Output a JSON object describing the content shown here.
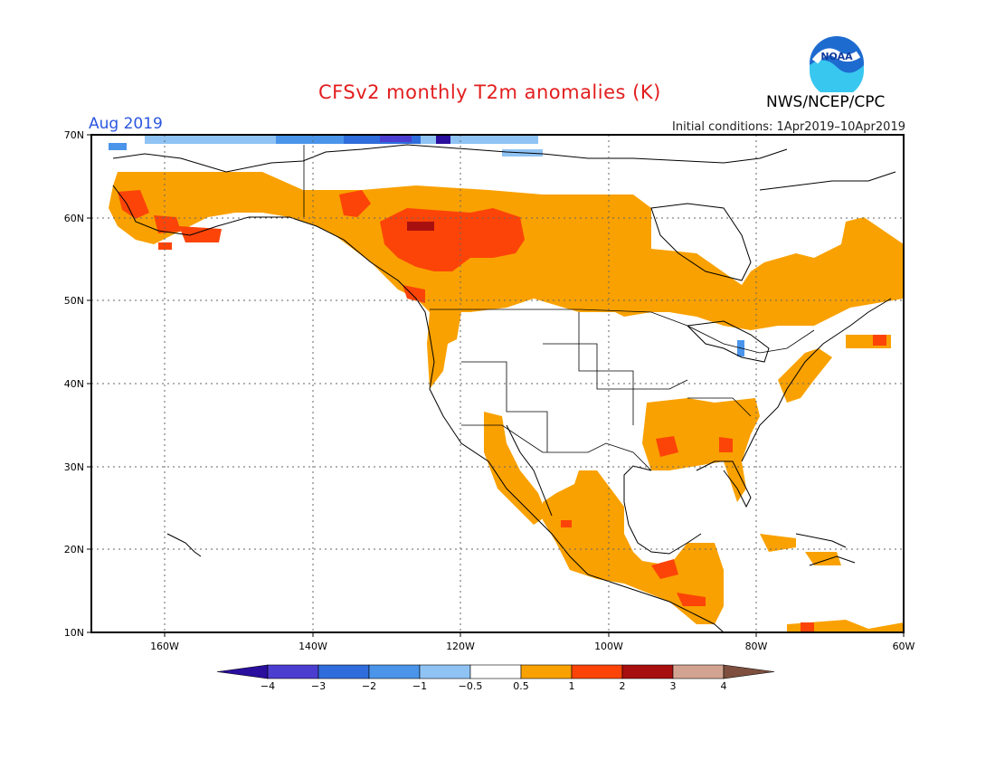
{
  "header": {
    "title": "CFSv2 monthly T2m anomalies (K)",
    "month": "Aug 2019",
    "initial_conditions": "Initial conditions: 1Apr2019–10Apr2019",
    "agency": "NWS/NCEP/CPC",
    "logo_text": "NOAA"
  },
  "map": {
    "lon_labels": [
      "160W",
      "140W",
      "120W",
      "100W",
      "80W",
      "60W"
    ],
    "lat_labels": [
      "70N",
      "60N",
      "50N",
      "40N",
      "30N",
      "20N",
      "10N"
    ],
    "lon_range": [
      -170,
      -60
    ],
    "lat_range": [
      10,
      70
    ]
  },
  "legend": {
    "labels": [
      "−4",
      "−3",
      "−2",
      "−1",
      "−0.5",
      "0.5",
      "1",
      "2",
      "3",
      "4"
    ],
    "colors": [
      "#2a0e9e",
      "#4c3dd1",
      "#2e6ddb",
      "#4a95ea",
      "#8fc3f4",
      "#ffffff",
      "#f9a100",
      "#fc4408",
      "#a80f0f",
      "#d3a391",
      "#7e4f3e"
    ],
    "units": "K"
  },
  "chart_data": {
    "type": "heatmap",
    "title": "CFSv2 monthly T2m anomalies (K)",
    "period": "Aug 2019",
    "initial_conditions": "1Apr2019–10Apr2019",
    "lon_range": [
      -170,
      -60
    ],
    "lat_range": [
      10,
      70
    ],
    "contour_levels": [
      -4,
      -3,
      -2,
      -1,
      -0.5,
      0.5,
      1,
      2,
      3,
      4
    ],
    "regions": [
      {
        "area": "Alaska south coast and western Canada",
        "anomaly": "0.5 to 1"
      },
      {
        "area": "British Columbia / Alberta interior",
        "anomaly": "1 to 2"
      },
      {
        "area": "central Alberta core",
        "anomaly": "2 to 3"
      },
      {
        "area": "Canada east of Hudson Bay and Maritimes",
        "anomaly": "0.5 to 1"
      },
      {
        "area": "US Pacific coast",
        "anomaly": "0.5 to 1"
      },
      {
        "area": "US Southeast",
        "anomaly": "0.5 to 2"
      },
      {
        "area": "Mexico and Central America",
        "anomaly": "0.5 to 2"
      },
      {
        "area": "Arctic coastal strip",
        "anomaly": "-0.5 to -4"
      }
    ]
  }
}
